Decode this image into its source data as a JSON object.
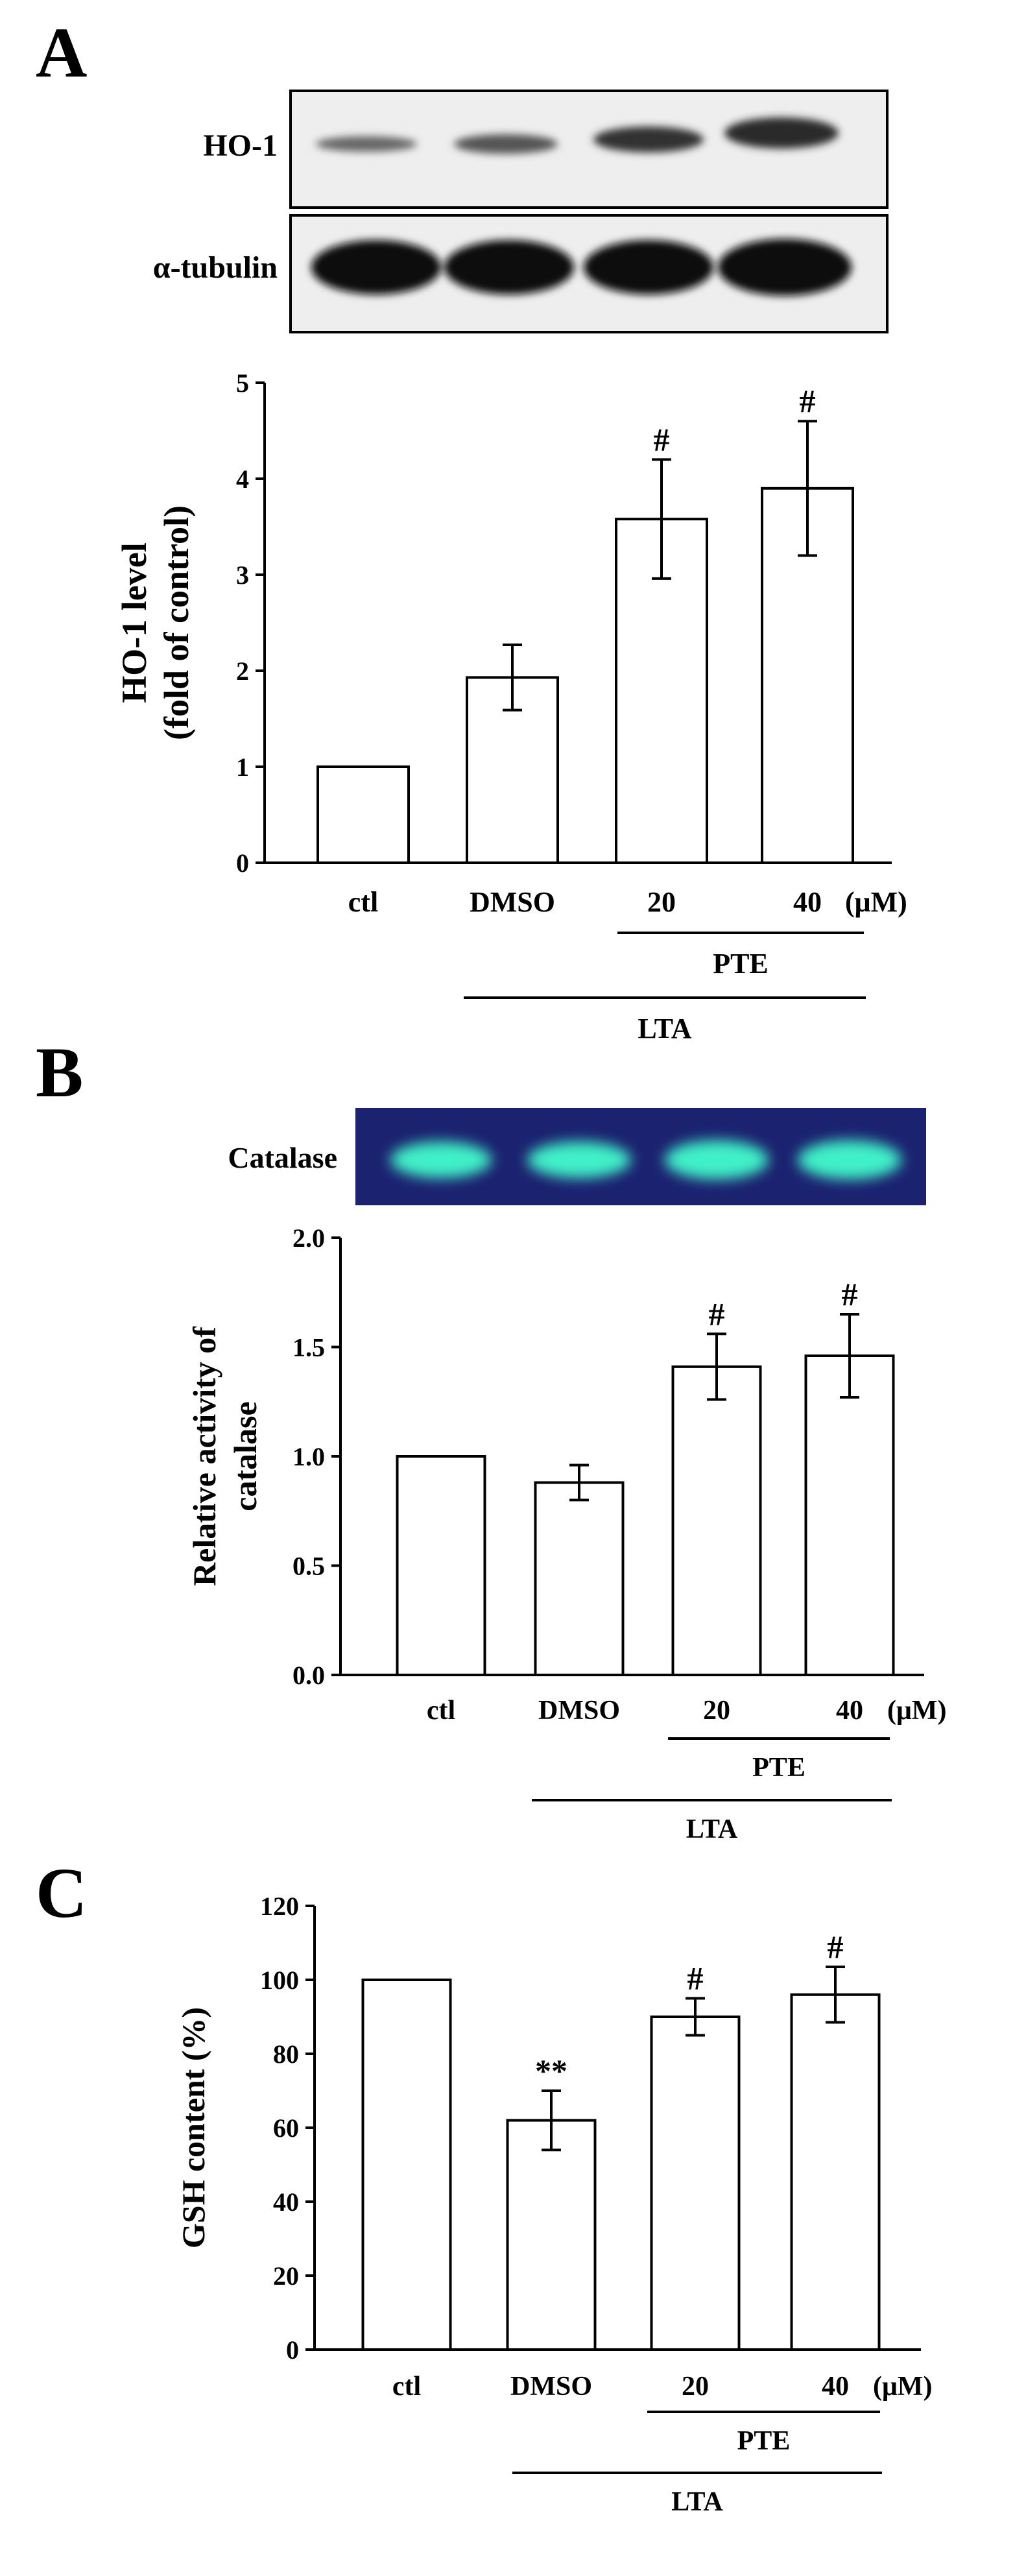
{
  "colors": {
    "ink": "#000000",
    "bar_fill": "#ffffff",
    "catalase_gel": "#1b2270",
    "catalase_band": "#3ff0c8",
    "blot_bg": "#eeeeee",
    "blot_band": "#111111"
  },
  "panel_a": {
    "letter": "A",
    "blot_labels": [
      "HO-1",
      "α-tubulin"
    ]
  },
  "panel_b": {
    "letter": "B",
    "blot_labels": [
      "Catalase"
    ]
  },
  "panel_c": {
    "letter": "C"
  },
  "groups": {
    "unit": "(μM)",
    "pte_label": "PTE",
    "lta_label": "LTA"
  },
  "chart_data": [
    {
      "type": "bar",
      "panel": "A",
      "categories": [
        "ctl",
        "DMSO",
        "20",
        "40"
      ],
      "values": [
        1.0,
        1.93,
        3.58,
        3.9
      ],
      "errors": [
        0,
        0.34,
        0.62,
        0.7
      ],
      "annotations": [
        "",
        "",
        "#",
        "#"
      ],
      "ylabel_lines": [
        "HO-1 level",
        "(fold of control)"
      ],
      "ylim": [
        0,
        5
      ],
      "yticks": [
        0,
        1,
        2,
        3,
        4,
        5
      ],
      "ytick_labels": [
        "0",
        "1",
        "2",
        "3",
        "4",
        "5"
      ]
    },
    {
      "type": "bar",
      "panel": "B",
      "categories": [
        "ctl",
        "DMSO",
        "20",
        "40"
      ],
      "values": [
        1.0,
        0.88,
        1.41,
        1.46
      ],
      "errors": [
        0,
        0.08,
        0.15,
        0.19
      ],
      "annotations": [
        "",
        "",
        "#",
        "#"
      ],
      "ylabel_lines": [
        "Relative activity of",
        "catalase"
      ],
      "ylim": [
        0,
        2.0
      ],
      "yticks": [
        0,
        0.5,
        1.0,
        1.5,
        2.0
      ],
      "ytick_labels": [
        "0.0",
        "0.5",
        "1.0",
        "1.5",
        "2.0"
      ]
    },
    {
      "type": "bar",
      "panel": "C",
      "categories": [
        "ctl",
        "DMSO",
        "20",
        "40"
      ],
      "values": [
        100,
        62,
        90,
        96
      ],
      "errors": [
        0,
        8,
        5,
        7.5
      ],
      "annotations": [
        "",
        "**",
        "#",
        "#"
      ],
      "ylabel_lines": [
        "GSH content (%)"
      ],
      "ylim": [
        0,
        120
      ],
      "yticks": [
        0,
        20,
        40,
        60,
        80,
        100,
        120
      ],
      "ytick_labels": [
        "0",
        "20",
        "40",
        "60",
        "80",
        "100",
        "120"
      ]
    }
  ]
}
